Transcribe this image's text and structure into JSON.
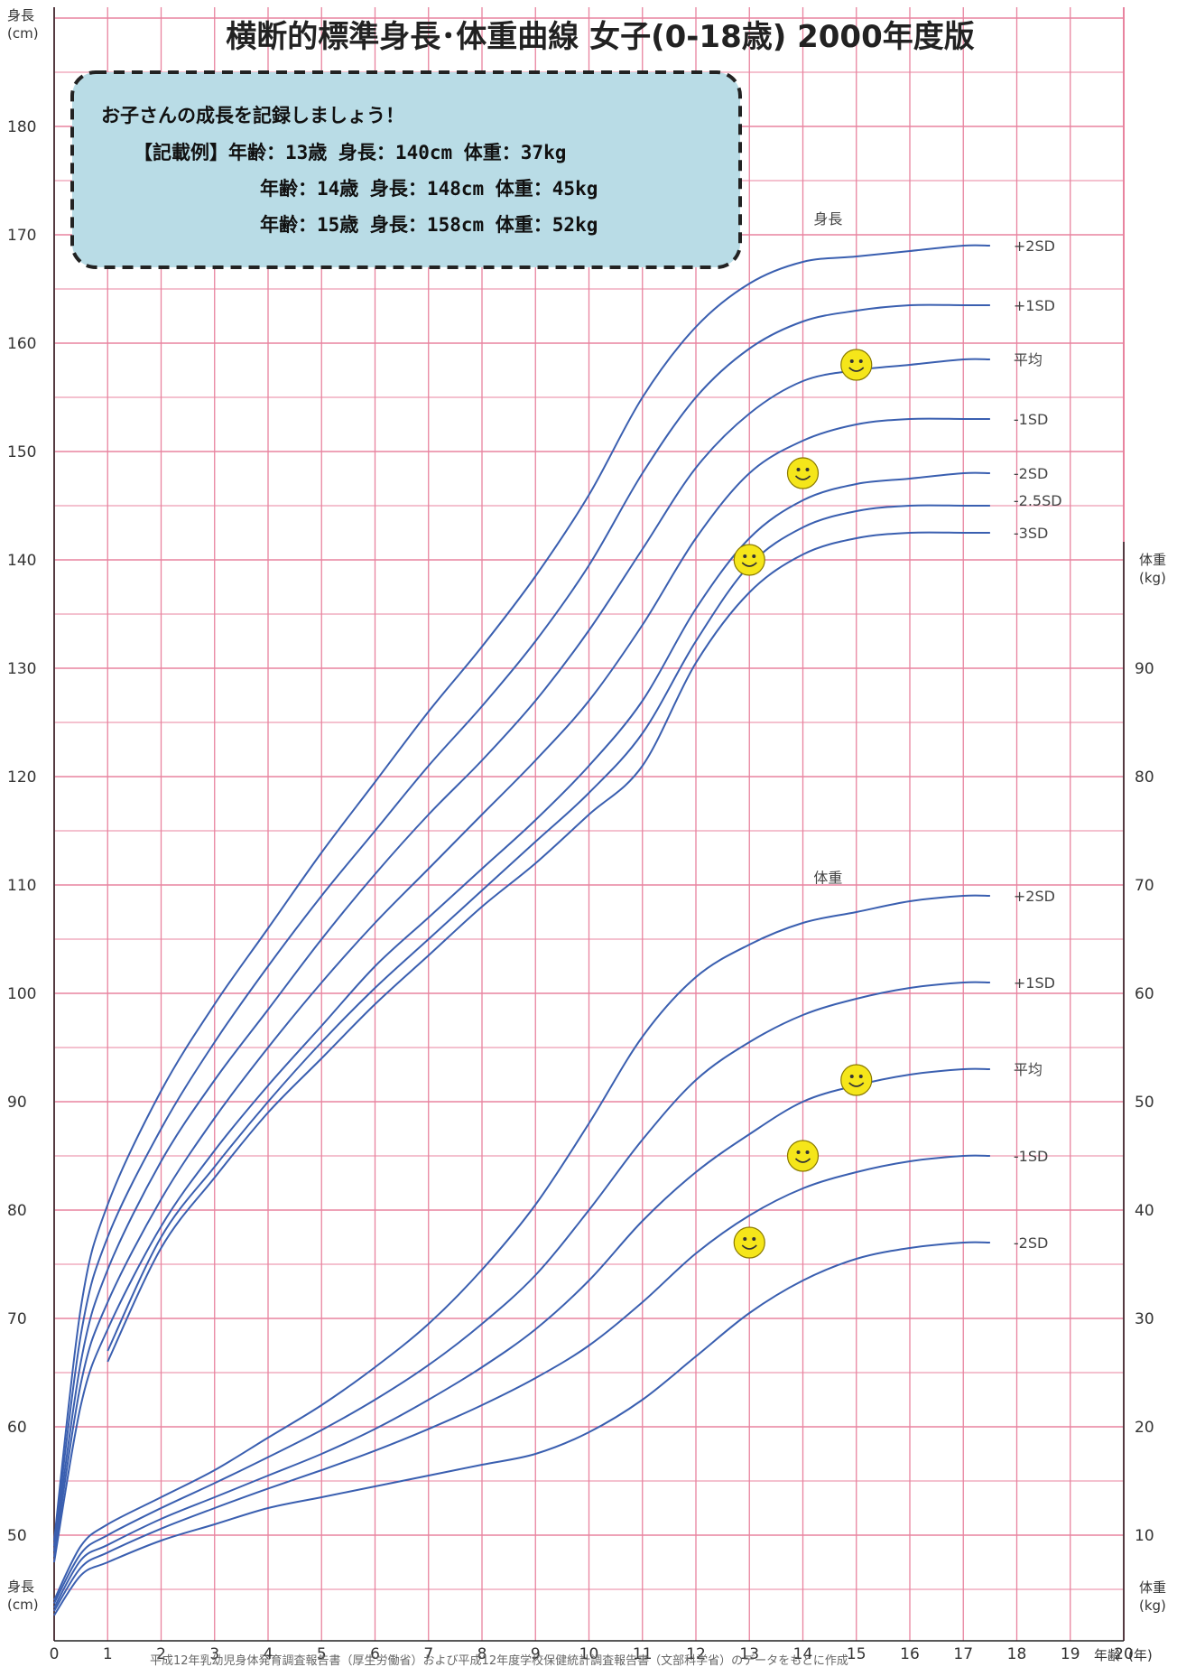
{
  "title": "横断的標準身長･体重曲線 女子(0-18歳) 2000年度版",
  "annotation": {
    "lines": [
      "お子さんの成長を記録しましょう！",
      "【記載例】年齢：13歳 身長：140cm 体重：37kg",
      "年齢：14歳 身長：148cm 体重：45kg",
      "年齢：15歳 身長：158cm 体重：52kg"
    ]
  },
  "footnote": "平成12年乳幼児身体発育調査報告書（厚生労働省）および平成12年度学校保健統計調査報告書（文部科学省）のデータをもとに作成",
  "axis_units": {
    "height_top": [
      "身長",
      "(cm)"
    ],
    "height_bottom": [
      "身長",
      "(cm)"
    ],
    "weight_top": [
      "体重",
      "(kg)"
    ],
    "weight_bottom": [
      "体重",
      "(kg)"
    ],
    "age": [
      "年齢",
      "(年)"
    ]
  },
  "colors": {
    "grid": "#e8839f",
    "curve": "#3a5fb0",
    "smiley": "#f5e61a",
    "annotation_bg": "#b9dce6"
  },
  "chart_data": {
    "type": "line",
    "x_label": "年齢(年)",
    "xlim": [
      0,
      20
    ],
    "x_ticks": [
      0,
      1,
      2,
      3,
      4,
      5,
      6,
      7,
      8,
      9,
      10,
      11,
      12,
      13,
      14,
      15,
      16,
      17,
      18,
      19,
      20
    ],
    "height_axis": {
      "label": "身長(cm)",
      "ylim": [
        45,
        195
      ],
      "ticks": [
        50,
        60,
        70,
        80,
        90,
        100,
        110,
        120,
        130,
        140,
        150,
        160,
        170,
        180
      ]
    },
    "weight_axis": {
      "label": "体重(kg)",
      "ylim": [
        5,
        95
      ],
      "ticks": [
        10,
        20,
        30,
        40,
        50,
        60,
        70,
        80,
        90
      ]
    },
    "group_labels": {
      "height": "身長",
      "weight": "体重"
    },
    "height_series": [
      {
        "name": "+2SD",
        "points": [
          [
            0,
            49.5
          ],
          [
            0.5,
            71
          ],
          [
            1,
            80.5
          ],
          [
            2,
            91
          ],
          [
            3,
            99
          ],
          [
            4,
            106
          ],
          [
            5,
            113
          ],
          [
            6,
            119.5
          ],
          [
            7,
            126
          ],
          [
            8,
            132
          ],
          [
            9,
            138.5
          ],
          [
            10,
            146
          ],
          [
            11,
            155
          ],
          [
            12,
            161.5
          ],
          [
            13,
            165.5
          ],
          [
            14,
            167.5
          ],
          [
            15,
            168
          ],
          [
            16,
            168.5
          ],
          [
            17,
            169
          ],
          [
            17.5,
            169
          ]
        ]
      },
      {
        "name": "+1SD",
        "points": [
          [
            0,
            49
          ],
          [
            0.5,
            68.5
          ],
          [
            1,
            77.5
          ],
          [
            2,
            87.5
          ],
          [
            3,
            95.5
          ],
          [
            4,
            102.5
          ],
          [
            5,
            109
          ],
          [
            6,
            115
          ],
          [
            7,
            121
          ],
          [
            8,
            126.5
          ],
          [
            9,
            132.5
          ],
          [
            10,
            139.5
          ],
          [
            11,
            148
          ],
          [
            12,
            155
          ],
          [
            13,
            159.5
          ],
          [
            14,
            162
          ],
          [
            15,
            163
          ],
          [
            16,
            163.5
          ],
          [
            17,
            163.5
          ],
          [
            17.5,
            163.5
          ]
        ]
      },
      {
        "name": "平均",
        "points": [
          [
            0,
            48.5
          ],
          [
            0.5,
            66
          ],
          [
            1,
            74.5
          ],
          [
            2,
            84.5
          ],
          [
            3,
            92
          ],
          [
            4,
            98.5
          ],
          [
            5,
            105
          ],
          [
            6,
            111
          ],
          [
            7,
            116.5
          ],
          [
            8,
            121.5
          ],
          [
            9,
            127
          ],
          [
            10,
            133.5
          ],
          [
            11,
            141
          ],
          [
            12,
            148.5
          ],
          [
            13,
            153.5
          ],
          [
            14,
            156.5
          ],
          [
            15,
            157.5
          ],
          [
            16,
            158
          ],
          [
            17,
            158.5
          ],
          [
            17.5,
            158.5
          ]
        ]
      },
      {
        "name": "-1SD",
        "points": [
          [
            0,
            48
          ],
          [
            0.5,
            64
          ],
          [
            1,
            71.5
          ],
          [
            2,
            81
          ],
          [
            3,
            88.5
          ],
          [
            4,
            95
          ],
          [
            5,
            101
          ],
          [
            6,
            106.5
          ],
          [
            7,
            111.5
          ],
          [
            8,
            116.5
          ],
          [
            9,
            121.5
          ],
          [
            10,
            127
          ],
          [
            11,
            134
          ],
          [
            12,
            142
          ],
          [
            13,
            148
          ],
          [
            14,
            151
          ],
          [
            15,
            152.5
          ],
          [
            16,
            153
          ],
          [
            17,
            153
          ],
          [
            17.5,
            153
          ]
        ]
      },
      {
        "name": "-2SD",
        "points": [
          [
            0,
            47.5
          ],
          [
            0.5,
            62
          ],
          [
            1,
            69
          ],
          [
            2,
            78.5
          ],
          [
            3,
            85.5
          ],
          [
            4,
            91.5
          ],
          [
            5,
            97
          ],
          [
            6,
            102.5
          ],
          [
            7,
            107
          ],
          [
            8,
            111.5
          ],
          [
            9,
            116
          ],
          [
            10,
            121
          ],
          [
            11,
            127
          ],
          [
            12,
            135.5
          ],
          [
            13,
            142
          ],
          [
            14,
            145.5
          ],
          [
            15,
            147
          ],
          [
            16,
            147.5
          ],
          [
            17,
            148
          ],
          [
            17.5,
            148
          ]
        ]
      },
      {
        "name": "-2.5SD",
        "points": [
          [
            1,
            67
          ],
          [
            2,
            77.5
          ],
          [
            3,
            84
          ],
          [
            4,
            90
          ],
          [
            5,
            95.5
          ],
          [
            6,
            100.5
          ],
          [
            7,
            105
          ],
          [
            8,
            109.5
          ],
          [
            9,
            114
          ],
          [
            10,
            118.5
          ],
          [
            11,
            124
          ],
          [
            12,
            132.5
          ],
          [
            13,
            139.5
          ],
          [
            14,
            143
          ],
          [
            15,
            144.5
          ],
          [
            16,
            145
          ],
          [
            17,
            145
          ],
          [
            17.5,
            145
          ]
        ]
      },
      {
        "name": "-3SD",
        "points": [
          [
            1,
            66
          ],
          [
            2,
            76.5
          ],
          [
            3,
            83
          ],
          [
            4,
            89
          ],
          [
            5,
            94
          ],
          [
            6,
            99
          ],
          [
            7,
            103.5
          ],
          [
            8,
            108
          ],
          [
            9,
            112
          ],
          [
            10,
            116.5
          ],
          [
            11,
            121
          ],
          [
            12,
            130.5
          ],
          [
            13,
            137
          ],
          [
            14,
            140.5
          ],
          [
            15,
            142
          ],
          [
            16,
            142.5
          ],
          [
            17,
            142.5
          ],
          [
            17.5,
            142.5
          ]
        ]
      }
    ],
    "weight_series": [
      {
        "name": "+2SD",
        "points": [
          [
            0,
            4
          ],
          [
            0.5,
            9
          ],
          [
            1,
            11
          ],
          [
            2,
            13.5
          ],
          [
            3,
            16
          ],
          [
            4,
            19
          ],
          [
            5,
            22
          ],
          [
            6,
            25.5
          ],
          [
            7,
            29.5
          ],
          [
            8,
            34.5
          ],
          [
            9,
            40.5
          ],
          [
            10,
            48
          ],
          [
            11,
            56
          ],
          [
            12,
            61.5
          ],
          [
            13,
            64.5
          ],
          [
            14,
            66.5
          ],
          [
            15,
            67.5
          ],
          [
            16,
            68.5
          ],
          [
            17,
            69
          ],
          [
            17.5,
            69
          ]
        ]
      },
      {
        "name": "+1SD",
        "points": [
          [
            0,
            3.7
          ],
          [
            0.5,
            8.3
          ],
          [
            1,
            10
          ],
          [
            2,
            12.5
          ],
          [
            3,
            14.8
          ],
          [
            4,
            17.2
          ],
          [
            5,
            19.7
          ],
          [
            6,
            22.5
          ],
          [
            7,
            25.7
          ],
          [
            8,
            29.5
          ],
          [
            9,
            34
          ],
          [
            10,
            40
          ],
          [
            11,
            46.5
          ],
          [
            12,
            52
          ],
          [
            13,
            55.5
          ],
          [
            14,
            58
          ],
          [
            15,
            59.5
          ],
          [
            16,
            60.5
          ],
          [
            17,
            61
          ],
          [
            17.5,
            61
          ]
        ]
      },
      {
        "name": "平均",
        "points": [
          [
            0,
            3.3
          ],
          [
            0.5,
            7.7
          ],
          [
            1,
            9.1
          ],
          [
            2,
            11.5
          ],
          [
            3,
            13.5
          ],
          [
            4,
            15.5
          ],
          [
            5,
            17.5
          ],
          [
            6,
            19.8
          ],
          [
            7,
            22.5
          ],
          [
            8,
            25.5
          ],
          [
            9,
            29
          ],
          [
            10,
            33.5
          ],
          [
            11,
            39
          ],
          [
            12,
            43.5
          ],
          [
            13,
            47
          ],
          [
            14,
            50
          ],
          [
            15,
            51.5
          ],
          [
            16,
            52.5
          ],
          [
            17,
            53
          ],
          [
            17.5,
            53
          ]
        ]
      },
      {
        "name": "-1SD",
        "points": [
          [
            0,
            3
          ],
          [
            0.5,
            7
          ],
          [
            1,
            8.4
          ],
          [
            2,
            10.6
          ],
          [
            3,
            12.5
          ],
          [
            4,
            14.3
          ],
          [
            5,
            16
          ],
          [
            6,
            17.8
          ],
          [
            7,
            19.8
          ],
          [
            8,
            22
          ],
          [
            9,
            24.5
          ],
          [
            10,
            27.5
          ],
          [
            11,
            31.5
          ],
          [
            12,
            36
          ],
          [
            13,
            39.5
          ],
          [
            14,
            42
          ],
          [
            15,
            43.5
          ],
          [
            16,
            44.5
          ],
          [
            17,
            45
          ],
          [
            17.5,
            45
          ]
        ]
      },
      {
        "name": "-2SD",
        "points": [
          [
            0,
            2.6
          ],
          [
            0.5,
            6.3
          ],
          [
            1,
            7.5
          ],
          [
            2,
            9.5
          ],
          [
            3,
            11
          ],
          [
            4,
            12.5
          ],
          [
            5,
            13.5
          ],
          [
            6,
            14.5
          ],
          [
            7,
            15.5
          ],
          [
            8,
            16.5
          ],
          [
            9,
            17.5
          ],
          [
            10,
            19.5
          ],
          [
            11,
            22.5
          ],
          [
            12,
            26.5
          ],
          [
            13,
            30.5
          ],
          [
            14,
            33.5
          ],
          [
            15,
            35.5
          ],
          [
            16,
            36.5
          ],
          [
            17,
            37
          ],
          [
            17.5,
            37
          ]
        ]
      }
    ],
    "sd_labels": {
      "height": [
        "+2SD",
        "+1SD",
        "平均",
        "-1SD",
        "-2SD",
        "-2.5SD",
        "-3SD"
      ],
      "weight": [
        "+2SD",
        "+1SD",
        "平均",
        "-1SD",
        "-2SD"
      ]
    },
    "records": [
      {
        "age": 13,
        "height": 140,
        "weight": 37
      },
      {
        "age": 14,
        "height": 148,
        "weight": 45
      },
      {
        "age": 15,
        "height": 158,
        "weight": 52
      }
    ]
  }
}
